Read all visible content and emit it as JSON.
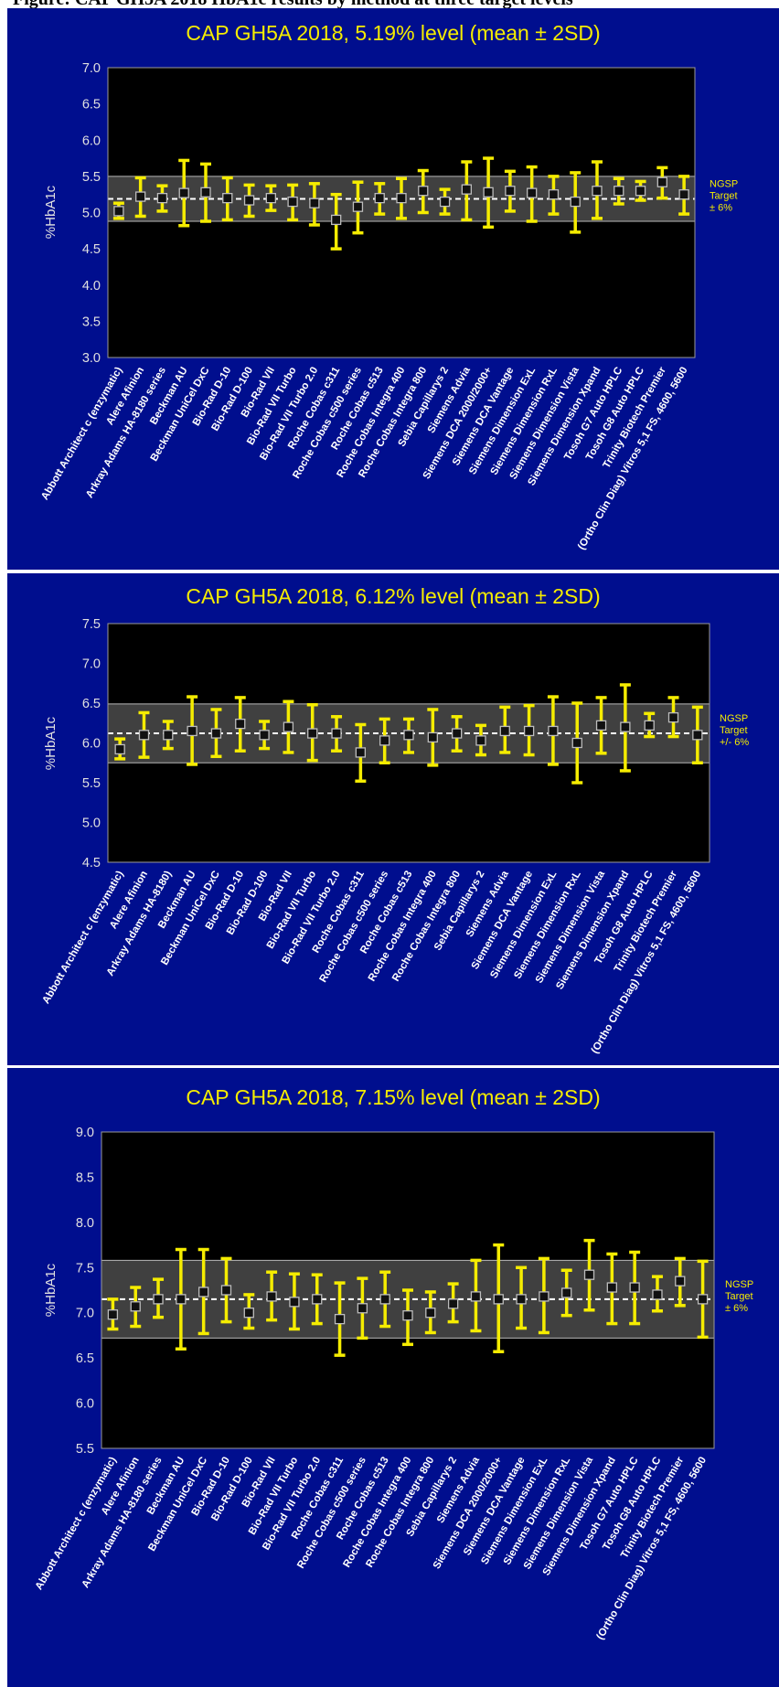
{
  "page_header": "Figure: CAP GH5A 2018 HbA1c results by method at three target levels",
  "chart_data": [
    {
      "type": "errorbar",
      "title": "CAP GH5A 2018, 5.19% level (mean ± 2SD)",
      "ylabel": "%HbA1c",
      "ylim": [
        3.0,
        7.0
      ],
      "yticks": [
        "3.0",
        "3.5",
        "4.0",
        "4.5",
        "5.0",
        "5.5",
        "6.0",
        "6.5",
        "7.0"
      ],
      "target": 5.19,
      "band": [
        4.88,
        5.5
      ],
      "band_label": [
        "NGSP",
        "Target",
        "± 6%"
      ],
      "categories": [
        "Abbott Architect c (enzymatic)",
        "Alere Afinion",
        "Arkray Adams HA-8180 series",
        "Beckman AU",
        "Beckman UniCel DxC",
        "Bio-Rad D-10",
        "Bio-Rad D-100",
        "Bio-Rad VII",
        "Bio-Rad VII Turbo",
        "Bio-Rad VII Turbo 2.0",
        "Roche Cobas c311",
        "Roche Cobas c500 series",
        "Roche Cobas c513",
        "Roche Cobas Integra 400",
        "Roche Cobas Integra 800",
        "Sebia Capillarys 2",
        "Siemens Advia",
        "Siemens DCA 2000/2000+",
        "Siemens DCA Vantage",
        "Siemens Dimension ExL",
        "Siemens Dimension RxL",
        "Siemens Dimension Vista",
        "Siemens Dimension Xpand",
        "Tosoh G7 Auto HPLC",
        "Tosoh G8 Auto HPLC",
        "Trinity Biotech Premier",
        "(Ortho Clin Diag) Vitros 5,1 FS, 4600, 5600"
      ],
      "mean": [
        5.02,
        5.22,
        5.2,
        5.27,
        5.28,
        5.2,
        5.17,
        5.2,
        5.15,
        5.13,
        4.9,
        5.08,
        5.2,
        5.2,
        5.3,
        5.15,
        5.32,
        5.28,
        5.3,
        5.27,
        5.25,
        5.15,
        5.3,
        5.3,
        5.3,
        5.42,
        5.25
      ],
      "lower": [
        4.92,
        4.95,
        5.02,
        4.82,
        4.88,
        4.9,
        4.95,
        5.03,
        4.9,
        4.83,
        4.5,
        4.72,
        4.98,
        4.92,
        5.0,
        4.98,
        4.9,
        4.8,
        5.02,
        4.88,
        4.98,
        4.73,
        4.92,
        5.12,
        5.17,
        5.2,
        4.98
      ],
      "upper": [
        5.13,
        5.48,
        5.37,
        5.72,
        5.67,
        5.48,
        5.38,
        5.37,
        5.38,
        5.4,
        5.25,
        5.42,
        5.4,
        5.47,
        5.58,
        5.32,
        5.7,
        5.75,
        5.57,
        5.63,
        5.5,
        5.55,
        5.7,
        5.47,
        5.43,
        5.62,
        5.5
      ]
    },
    {
      "type": "errorbar",
      "title": "CAP GH5A 2018, 6.12% level (mean ± 2SD)",
      "ylabel": "%HbA1c",
      "ylim": [
        4.5,
        7.5
      ],
      "yticks": [
        "4.5",
        "5.0",
        "5.5",
        "6.0",
        "6.5",
        "7.0",
        "7.5"
      ],
      "target": 6.12,
      "band": [
        5.75,
        6.49
      ],
      "band_label": [
        "NGSP",
        "Target",
        "+/- 6%"
      ],
      "categories": [
        "Abbott Architect c (enzymatic)",
        "Alere Afinion",
        "Arkray Adams HA-8180)",
        "Beckman AU",
        "Beckman UniCel DxC",
        "Bio-Rad D-10",
        "Bio-Rad D-100",
        "Bio-Rad VII",
        "Bio-Rad VII Turbo",
        "Bio-Rad VII Turbo 2.0",
        "Roche Cobas c311",
        "Roche Cobas c500 series",
        "Roche Cobas c513",
        "Roche Cobas Integra 400",
        "Roche Cobas Integra 800",
        "Sebia Capillarys 2",
        "Siemens Advia",
        "Siemens DCA Vantage",
        "Siemens Dimension ExL",
        "Siemens Dimension RxL",
        "Siemens Dimension Vista",
        "Siemens Dimension Xpand",
        "Tosoh G8 Auto HPLC",
        "Trinity Biotech Premier",
        "(Ortho Clin Diag) Vitros 5,1 FS, 4600, 5600"
      ],
      "mean": [
        5.92,
        6.1,
        6.1,
        6.15,
        6.12,
        6.24,
        6.1,
        6.2,
        6.12,
        6.12,
        5.88,
        6.03,
        6.1,
        6.07,
        6.12,
        6.03,
        6.15,
        6.15,
        6.15,
        6.0,
        6.22,
        6.2,
        6.22,
        6.32,
        6.1
      ],
      "lower": [
        5.8,
        5.82,
        5.93,
        5.73,
        5.83,
        5.9,
        5.93,
        5.88,
        5.78,
        5.9,
        5.52,
        5.75,
        5.88,
        5.72,
        5.9,
        5.85,
        5.88,
        5.85,
        5.73,
        5.5,
        5.87,
        5.65,
        6.08,
        6.08,
        5.75
      ],
      "upper": [
        6.05,
        6.38,
        6.27,
        6.58,
        6.42,
        6.57,
        6.27,
        6.52,
        6.48,
        6.33,
        6.23,
        6.3,
        6.3,
        6.42,
        6.33,
        6.22,
        6.45,
        6.47,
        6.58,
        6.5,
        6.57,
        6.73,
        6.37,
        6.57,
        6.45
      ]
    },
    {
      "type": "errorbar",
      "title": "CAP GH5A 2018, 7.15% level (mean ± 2SD)",
      "ylabel": "%HbA1c",
      "ylim": [
        5.5,
        9.0
      ],
      "yticks": [
        "5.5",
        "6.0",
        "6.5",
        "7.0",
        "7.5",
        "8.0",
        "8.5",
        "9.0"
      ],
      "target": 7.15,
      "band": [
        6.72,
        7.58
      ],
      "band_label": [
        "NGSP",
        "Target",
        "± 6%"
      ],
      "categories": [
        "Abbott Architect c (enzymatic)",
        "Alere Afinion",
        "Arkray Adams HA-8180 series",
        "Beckman AU",
        "Beckman UniCel DxC",
        "Bio-Rad D-10",
        "Bio-Rad D-100",
        "Bio-Rad VII",
        "Bio-Rad VII Turbo",
        "Bio-Rad VII Turbo 2.0",
        "Roche Cobas c311",
        "Roche Cobas c500 series",
        "Roche Cobas c513",
        "Roche Cobas Integra 400",
        "Roche Cobas Integra 800",
        "Sebia Capillarys 2",
        "Siemens Advia",
        "Siemens DCA 2000/2000+",
        "Siemens DCA Vantage",
        "Siemens Dimension ExL",
        "Siemens Dimension RxL",
        "Siemens Dimension Vista",
        "Siemens Dimension Xpand",
        "Tosoh G7 Auto HPLC",
        "Tosoh G8 Auto HPLC",
        "Trinity Biotech Premier",
        "(Ortho Clin Diag) Vitros 5,1 FS, 4600, 5600"
      ],
      "mean": [
        6.98,
        7.07,
        7.15,
        7.15,
        7.23,
        7.25,
        7.0,
        7.18,
        7.12,
        7.15,
        6.93,
        7.05,
        7.15,
        6.97,
        7.0,
        7.1,
        7.18,
        7.15,
        7.15,
        7.18,
        7.22,
        7.42,
        7.28,
        7.28,
        7.2,
        7.35,
        7.15
      ],
      "lower": [
        6.82,
        6.85,
        6.95,
        6.6,
        6.77,
        6.9,
        6.83,
        6.92,
        6.82,
        6.88,
        6.53,
        6.72,
        6.85,
        6.65,
        6.78,
        6.9,
        6.8,
        6.57,
        6.83,
        6.78,
        6.97,
        7.03,
        6.88,
        6.88,
        7.02,
        7.08,
        6.73
      ],
      "upper": [
        7.15,
        7.28,
        7.37,
        7.7,
        7.7,
        7.6,
        7.2,
        7.45,
        7.43,
        7.42,
        7.33,
        7.38,
        7.45,
        7.25,
        7.23,
        7.32,
        7.58,
        7.75,
        7.5,
        7.6,
        7.47,
        7.8,
        7.65,
        7.67,
        7.4,
        7.6,
        7.57
      ]
    }
  ]
}
